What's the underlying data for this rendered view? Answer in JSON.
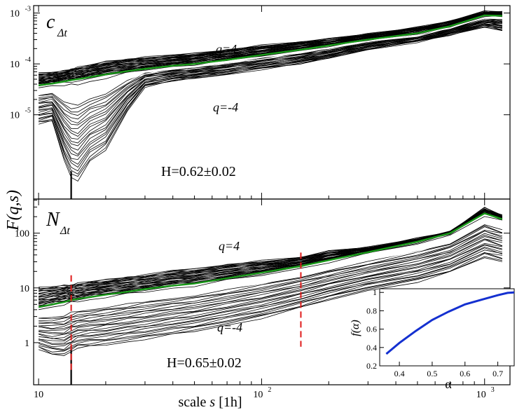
{
  "chart_data": {
    "type": "line",
    "shared": {
      "ylabel": "F(q,s)",
      "xlabel_prefix": "scale ",
      "xlabel_var": "s",
      "xlabel_unit": " [1h]",
      "x_ticks": [
        10,
        100,
        1000
      ],
      "x_tick_labels": [
        "10",
        "10",
        "10"
      ],
      "x_tick_exponents": [
        "",
        "2",
        "3"
      ],
      "xlim": [
        9.5,
        1300
      ]
    },
    "panels": [
      {
        "name": "top",
        "panel_label_main": "c",
        "panel_label_sub": "Δt",
        "q_max_label": "q=4",
        "q_min_label": "q=-4",
        "h_label": "H=0.62±0.02",
        "ylim": [
          2.2e-07,
          0.0014
        ],
        "y_ticks": [
          1e-05,
          0.0001,
          0.001
        ],
        "y_tick_labels": [
          "10",
          "10",
          "10"
        ],
        "y_tick_exponents": [
          "-5",
          "-4",
          "-3"
        ],
        "n_curves": 60,
        "q_values": [
          -4,
          0,
          4
        ],
        "s": [
          10,
          11.5,
          13,
          14,
          15,
          17,
          20,
          25,
          30,
          40,
          50,
          70,
          100,
          150,
          200,
          300,
          500,
          700,
          1000,
          1200
        ],
        "upper_q4": [
          6.5e-05,
          6.8e-05,
          7.2e-05,
          8e-05,
          8.5e-05,
          9.5e-05,
          0.00011,
          0.000125,
          0.000135,
          0.00015,
          0.00016,
          0.00019,
          0.00023,
          0.00027,
          0.00031,
          0.00039,
          0.00052,
          0.00069,
          0.00108,
          0.00105
        ],
        "mid_q0": [
          3.8e-05,
          4.1e-05,
          4.5e-05,
          4.8e-05,
          5e-05,
          5.5e-05,
          6.2e-05,
          7.2e-05,
          8e-05,
          9.2e-05,
          0.0001,
          0.00012,
          0.00015,
          0.00019,
          0.00023,
          0.0003,
          0.0004,
          0.00055,
          0.0009,
          0.00088
        ],
        "lower_qm4": [
          6.5e-06,
          7.5e-06,
          1.3e-06,
          6e-07,
          5e-07,
          1.2e-06,
          2e-06,
          1.2e-05,
          3.5e-05,
          4.6e-05,
          5.2e-05,
          6.2e-05,
          7.8e-05,
          0.0001,
          0.00013,
          0.00019,
          0.00027,
          0.00037,
          0.00053,
          0.00045
        ]
      },
      {
        "name": "bottom",
        "panel_label_main": "N",
        "panel_label_sub": "Δt",
        "q_max_label": "q=4",
        "q_min_label": "q=-4",
        "h_label": "H=0.65±0.02",
        "ylim": [
          0.17,
          420
        ],
        "y_ticks": [
          1,
          10,
          100
        ],
        "y_tick_labels": [
          "1",
          "10",
          "100"
        ],
        "y_tick_exponents": [
          "",
          "",
          ""
        ],
        "n_curves": 60,
        "q_values": [
          -4,
          0,
          4
        ],
        "s": [
          10,
          11.5,
          13,
          14,
          15,
          17,
          20,
          25,
          30,
          40,
          50,
          70,
          100,
          150,
          200,
          300,
          500,
          700,
          1000,
          1200
        ],
        "upper_q4": [
          10,
          10.5,
          11,
          11.5,
          12,
          13,
          14,
          16,
          17,
          21,
          22,
          27,
          31,
          36,
          47,
          55,
          80,
          105,
          290,
          210
        ],
        "mid_q0": [
          4.5,
          5,
          5.5,
          6,
          6.3,
          6.8,
          7.5,
          8.5,
          9.5,
          11,
          12,
          15,
          19,
          25,
          32,
          45,
          70,
          100,
          230,
          180
        ],
        "lower_qm4": [
          0.75,
          0.6,
          0.58,
          0.7,
          0.8,
          0.85,
          0.9,
          1.05,
          1.15,
          1.4,
          1.6,
          2.1,
          2.8,
          4.3,
          6,
          9,
          13,
          19,
          36,
          30
        ],
        "crossover_s": [
          14,
          150
        ]
      }
    ],
    "inset": {
      "xlabel": "α",
      "ylabel": "f(α)",
      "xlim": [
        0.34,
        0.75
      ],
      "ylim": [
        0.2,
        1.04
      ],
      "x_ticks": [
        0.4,
        0.5,
        0.6,
        0.7
      ],
      "x_tick_labels": [
        "0.4",
        "0.5",
        "0.6",
        "0.7"
      ],
      "y_ticks": [
        0.2,
        0.4,
        0.6,
        0.8,
        1.0
      ],
      "y_tick_labels": [
        "0.2",
        "0.4",
        "0.6",
        "0.8",
        "1"
      ],
      "alpha": [
        0.36,
        0.4,
        0.45,
        0.5,
        0.55,
        0.6,
        0.65,
        0.7,
        0.73,
        0.75
      ],
      "f_alpha": [
        0.33,
        0.45,
        0.58,
        0.7,
        0.79,
        0.87,
        0.92,
        0.97,
        0.995,
        1.0
      ]
    },
    "colors": {
      "curves": "#000000",
      "q0_curve": "#1a9a1a",
      "crossover": "#e01b1b",
      "spectrum": "#1430d0"
    }
  }
}
